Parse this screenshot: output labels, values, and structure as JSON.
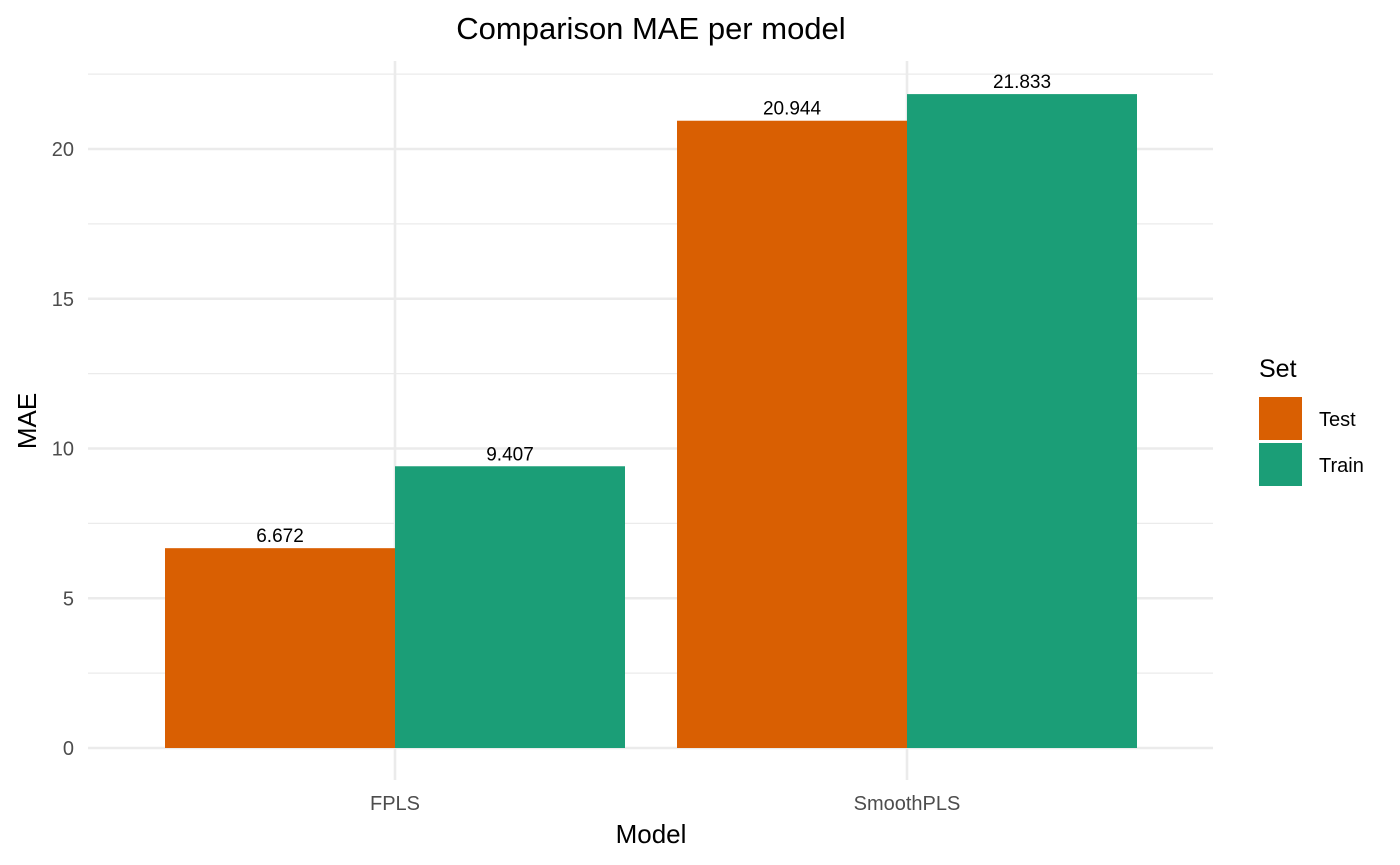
{
  "chart_data": {
    "type": "bar",
    "title": "Comparison MAE per model",
    "xlabel": "Model",
    "ylabel": "MAE",
    "categories": [
      "FPLS",
      "SmoothPLS"
    ],
    "series": [
      {
        "name": "Test",
        "values": [
          6.672,
          20.944
        ],
        "labels": [
          "6.672",
          "20.944"
        ],
        "color": "#D95F02"
      },
      {
        "name": "Train",
        "values": [
          9.407,
          21.833
        ],
        "labels": [
          "9.407",
          "21.833"
        ],
        "color": "#1B9E77"
      }
    ],
    "ylim": [
      -0.5,
      22.5
    ],
    "yticks": [
      0,
      5,
      10,
      15,
      20
    ],
    "ytick_labels": [
      "0",
      "5",
      "10",
      "15",
      "20"
    ],
    "y_minor_ticks": [
      2.5,
      7.5,
      12.5,
      17.5,
      22.5
    ],
    "legend": {
      "title": "Set",
      "position": "right"
    },
    "grid": true,
    "grid_color": "#EBEBEB"
  }
}
